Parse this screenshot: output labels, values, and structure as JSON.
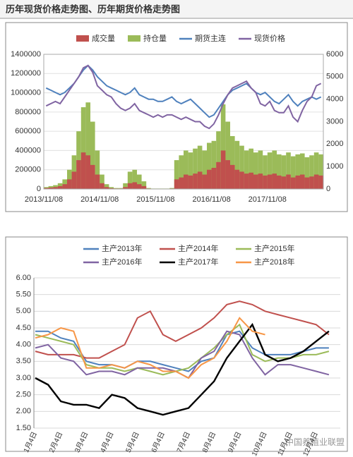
{
  "header": {
    "title": "历年现货价格走势图、历年期货价格走势图"
  },
  "watermark": "中国养殖业联盟",
  "chart_data": [
    {
      "type": "combo",
      "categories": [
        "2013/11/08",
        null,
        null,
        null,
        null,
        null,
        null,
        null,
        null,
        null,
        null,
        null,
        "2014/11/08",
        null,
        null,
        null,
        null,
        null,
        null,
        null,
        null,
        null,
        null,
        null,
        "2015/11/08",
        null,
        null,
        null,
        null,
        null,
        null,
        null,
        null,
        null,
        null,
        null,
        "2016/11/08",
        null,
        null,
        null,
        null,
        null,
        null,
        null,
        null,
        null,
        null,
        null,
        "2017/11/08",
        null,
        null,
        null,
        null,
        null,
        null,
        null,
        null,
        null,
        null,
        null
      ],
      "ylim": [
        0,
        1400000
      ],
      "yticks": [
        0,
        200000,
        400000,
        600000,
        800000,
        1000000,
        1200000,
        1400000
      ],
      "y2lim": [
        0,
        6000
      ],
      "y2ticks": [
        0,
        1000,
        2000,
        3000,
        4000,
        5000,
        6000
      ],
      "grid": true,
      "series": [
        {
          "name": "成交量",
          "type": "bar",
          "color": "#c0504d",
          "values": [
            10000,
            15000,
            20000,
            30000,
            50000,
            100000,
            180000,
            300000,
            380000,
            350000,
            250000,
            150000,
            60000,
            20000,
            8000,
            5000,
            5000,
            20000,
            60000,
            70000,
            50000,
            30000,
            5000,
            2000,
            2000,
            2000,
            2000,
            5000,
            100000,
            120000,
            150000,
            140000,
            160000,
            180000,
            150000,
            200000,
            220000,
            280000,
            400000,
            300000,
            250000,
            200000,
            180000,
            160000,
            170000,
            150000,
            160000,
            140000,
            150000,
            160000,
            140000,
            130000,
            150000,
            120000,
            140000,
            150000,
            120000,
            130000,
            150000,
            140000
          ]
        },
        {
          "name": "持仓量",
          "type": "bar",
          "color": "#9bbb59",
          "values": [
            20000,
            30000,
            40000,
            60000,
            100000,
            200000,
            350000,
            600000,
            850000,
            900000,
            700000,
            400000,
            150000,
            50000,
            20000,
            10000,
            10000,
            60000,
            180000,
            200000,
            150000,
            80000,
            10000,
            5000,
            5000,
            5000,
            5000,
            10000,
            300000,
            350000,
            400000,
            380000,
            420000,
            450000,
            400000,
            480000,
            500000,
            600000,
            880000,
            700000,
            550000,
            500000,
            450000,
            400000,
            420000,
            380000,
            400000,
            350000,
            380000,
            400000,
            360000,
            350000,
            380000,
            340000,
            360000,
            370000,
            330000,
            350000,
            380000,
            360000
          ]
        },
        {
          "name": "期货主连",
          "type": "line",
          "axis": "y2",
          "color": "#4f81bd",
          "values": [
            4500,
            4400,
            4300,
            4200,
            4300,
            4500,
            4700,
            5000,
            5300,
            5500,
            5300,
            5000,
            4800,
            4600,
            4500,
            4400,
            4300,
            4200,
            4300,
            4500,
            4200,
            4100,
            4000,
            4000,
            3900,
            3900,
            4000,
            4100,
            3900,
            3800,
            3900,
            4000,
            3800,
            3600,
            3400,
            3200,
            3300,
            3600,
            3900,
            4200,
            4400,
            4500,
            4600,
            4700,
            4500,
            4300,
            4200,
            4300,
            4100,
            3900,
            3800,
            4000,
            4200,
            3900,
            3700,
            3900,
            4000,
            4100,
            4000,
            4100
          ]
        },
        {
          "name": "现货价格",
          "type": "line",
          "axis": "y2",
          "color": "#8064a2",
          "values": [
            3700,
            3800,
            3900,
            3800,
            4100,
            4400,
            4700,
            5000,
            5400,
            5500,
            5200,
            4600,
            4400,
            4200,
            4100,
            3800,
            3600,
            3500,
            3600,
            3800,
            3500,
            3400,
            3300,
            3200,
            3300,
            3200,
            3300,
            3300,
            3200,
            3100,
            3200,
            3100,
            3000,
            3000,
            2800,
            2700,
            2900,
            3300,
            3800,
            4200,
            4500,
            4600,
            4700,
            4800,
            4500,
            4300,
            3800,
            3700,
            3900,
            3500,
            3400,
            3400,
            3700,
            3200,
            3000,
            3500,
            3900,
            4100,
            4600,
            4700
          ]
        }
      ]
    },
    {
      "type": "line",
      "categories": [
        "1月4日",
        null,
        "2月4日",
        null,
        "3月4日",
        null,
        "4月4日",
        null,
        "5月4日",
        null,
        "6月4日",
        null,
        "7月4日",
        null,
        "8月4日",
        null,
        "9月4日",
        null,
        "10月4日",
        null,
        "11月4日",
        null,
        "12月4日",
        null
      ],
      "ylim": [
        1.5,
        6.0
      ],
      "yticks": [
        {
          "value": 1.5,
          "label": "1.50"
        },
        {
          "value": 2,
          "label": "2.00"
        },
        {
          "value": 2.5,
          "label": "2.50"
        },
        {
          "value": 3,
          "label": "3.00"
        },
        {
          "value": 3.5,
          "label": "3.50"
        },
        {
          "value": 4,
          "label": "4.00"
        },
        {
          "value": 4.5,
          "label": "4.50"
        },
        {
          "value": 5,
          "label": "5.00"
        },
        {
          "value": 5.5,
          "label": "5.50"
        },
        {
          "value": 6,
          "label": "6.00"
        }
      ],
      "grid": true,
      "series": [
        {
          "name": "主产2013年",
          "color": "#4f81bd",
          "values": [
            4.4,
            4.4,
            4.2,
            4.1,
            3.5,
            3.4,
            3.4,
            3.3,
            3.5,
            3.5,
            3.4,
            3.3,
            3.2,
            3.5,
            3.6,
            4.3,
            4.4,
            3.9,
            3.7,
            3.7,
            3.7,
            3.8,
            3.9,
            3.9
          ]
        },
        {
          "name": "主产2014年",
          "color": "#c0504d",
          "values": [
            3.8,
            3.7,
            3.7,
            3.7,
            3.6,
            3.6,
            3.8,
            4.0,
            4.8,
            5.0,
            4.3,
            4.1,
            4.3,
            4.5,
            4.8,
            5.2,
            5.3,
            5.2,
            5.0,
            4.9,
            4.8,
            4.7,
            4.6,
            4.3
          ]
        },
        {
          "name": "主产2015年",
          "color": "#9bbb59",
          "values": [
            4.3,
            4.2,
            4.1,
            4.0,
            3.4,
            3.3,
            3.3,
            3.2,
            3.3,
            3.2,
            3.1,
            3.2,
            3.3,
            3.6,
            3.9,
            4.3,
            4.6,
            3.7,
            3.5,
            3.6,
            3.6,
            3.7,
            3.7,
            3.8
          ]
        },
        {
          "name": "主产2016年",
          "color": "#8064a2",
          "values": [
            3.9,
            4.0,
            3.6,
            3.5,
            3.1,
            3.2,
            3.2,
            3.1,
            3.3,
            3.3,
            3.3,
            3.2,
            3.0,
            3.6,
            3.8,
            4.4,
            4.3,
            3.6,
            3.1,
            3.4,
            3.4,
            3.3,
            3.2,
            3.1
          ]
        },
        {
          "name": "主产2017年",
          "color": "#000000",
          "values": [
            3.0,
            2.8,
            2.3,
            2.2,
            2.2,
            2.1,
            2.5,
            2.4,
            2.1,
            2.0,
            1.9,
            2.0,
            2.1,
            2.5,
            2.9,
            3.6,
            4.1,
            4.6,
            3.7,
            3.5,
            3.6,
            3.8,
            4.1,
            4.4
          ]
        },
        {
          "name": "主产2018年",
          "color": "#f79646",
          "values": [
            4.2,
            4.3,
            4.5,
            4.4,
            3.3,
            3.3,
            3.4,
            3.3,
            3.5,
            3.4,
            3.2,
            3.2,
            3.0,
            3.4,
            3.6,
            4.1,
            4.8,
            4.4,
            4.3,
            null,
            null,
            null,
            null,
            null
          ]
        }
      ]
    }
  ]
}
